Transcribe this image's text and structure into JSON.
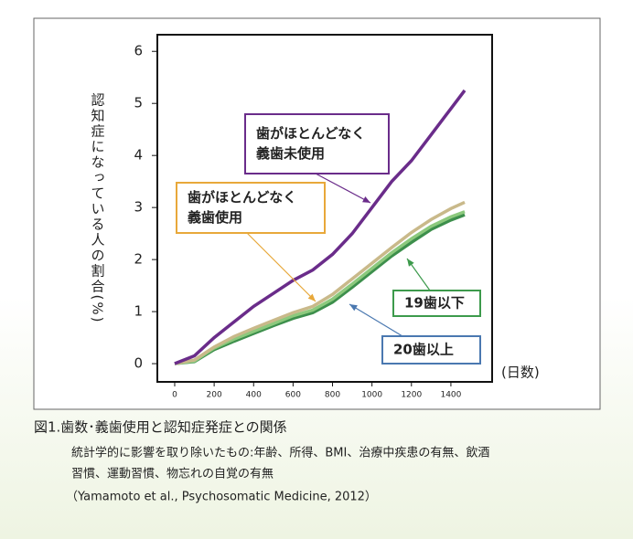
{
  "chart_data": {
    "type": "line",
    "y_label": "認知症になっている人の割合(%)",
    "x_label": "(日数)",
    "x": [
      0,
      100,
      200,
      300,
      400,
      500,
      600,
      700,
      800,
      900,
      1000,
      1100,
      1200,
      1300,
      1400,
      1470
    ],
    "series": [
      {
        "name_lines": [
          "歯がほとんどなく",
          "義歯未使用"
        ],
        "color": "#6a2c8a",
        "values": [
          0,
          0.15,
          0.5,
          0.8,
          1.1,
          1.35,
          1.6,
          1.8,
          2.1,
          2.5,
          3.0,
          3.5,
          3.9,
          4.4,
          4.9,
          5.25
        ]
      },
      {
        "name_lines": [
          "歯がほとんどなく",
          "義歯使用"
        ],
        "color": "#c9b98a",
        "values": [
          0,
          0.07,
          0.32,
          0.52,
          0.68,
          0.83,
          0.98,
          1.1,
          1.33,
          1.63,
          1.93,
          2.23,
          2.52,
          2.77,
          2.98,
          3.1
        ]
      },
      {
        "name_lines": [
          "19歯以下"
        ],
        "color": "#8cc97d",
        "values": [
          0,
          0.05,
          0.3,
          0.47,
          0.62,
          0.77,
          0.92,
          1.03,
          1.24,
          1.53,
          1.83,
          2.13,
          2.4,
          2.64,
          2.82,
          2.92
        ]
      },
      {
        "name_lines": [
          "20歯以上"
        ],
        "color": "#3d8f4c",
        "values": [
          0,
          0.04,
          0.27,
          0.43,
          0.58,
          0.73,
          0.87,
          0.98,
          1.18,
          1.47,
          1.77,
          2.07,
          2.33,
          2.58,
          2.76,
          2.86
        ]
      }
    ],
    "xlim": [
      -88,
      1609
    ],
    "ylim": [
      -0.35,
      6.32
    ],
    "xticks": [
      0,
      200,
      400,
      600,
      800,
      1000,
      1200,
      1400
    ],
    "yticks": [
      0,
      1,
      2,
      3,
      4,
      5,
      6
    ]
  },
  "caption": {
    "title": "図1.歯数･義歯使用と認知症発症との関係",
    "lines": [
      "統計学的に影響を取り除いたもの:年齢、所得、BMI、治療中疾患の有無、飲酒",
      "習慣、運動習慣、物忘れの自覚の有無",
      "（Yamamoto et al., Psychosomatic Medicine, 2012）"
    ]
  }
}
